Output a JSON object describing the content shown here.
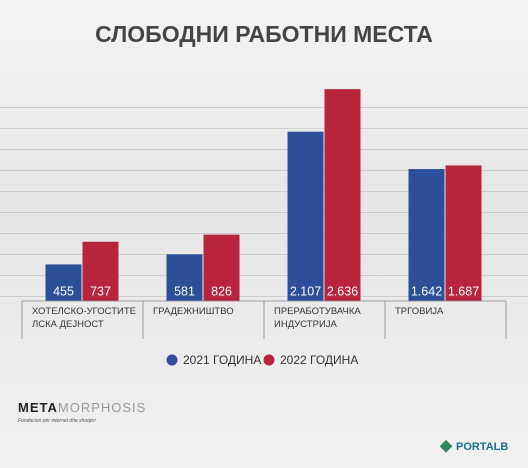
{
  "chart_data": {
    "type": "bar",
    "title": "СЛОБОДНИ РАБОТНИ МЕСТА",
    "categories": [
      "ХОТЕЛСКО-УГОСТИТЕ\nЛСКА ДЕЈНОСТ",
      "ГРАДЕЖНИШТВО",
      "ПРЕРАБОТУВАЧКА\nИНДУСТРИЈА",
      "ТРГОВИЈА"
    ],
    "series": [
      {
        "name": "2021 ГОДИНА",
        "color": "#2d4f9a",
        "values": [
          455,
          581,
          2107,
          1642
        ],
        "value_labels": [
          "455",
          "581",
          "2.107",
          "1.642"
        ]
      },
      {
        "name": "2022 ГОДИНА",
        "color": "#b8243c",
        "values": [
          737,
          826,
          2636,
          1687
        ],
        "value_labels": [
          "737",
          "826",
          "2.636",
          "1.687"
        ]
      }
    ],
    "ylim": [
      0,
      2750
    ],
    "legend": "bottom"
  },
  "logos": {
    "meta": "META",
    "morphosis": "MORPHOSIS",
    "meta_tagline": "Fondacion për internet dhe shoqëri",
    "portalb": "PORTALB"
  }
}
